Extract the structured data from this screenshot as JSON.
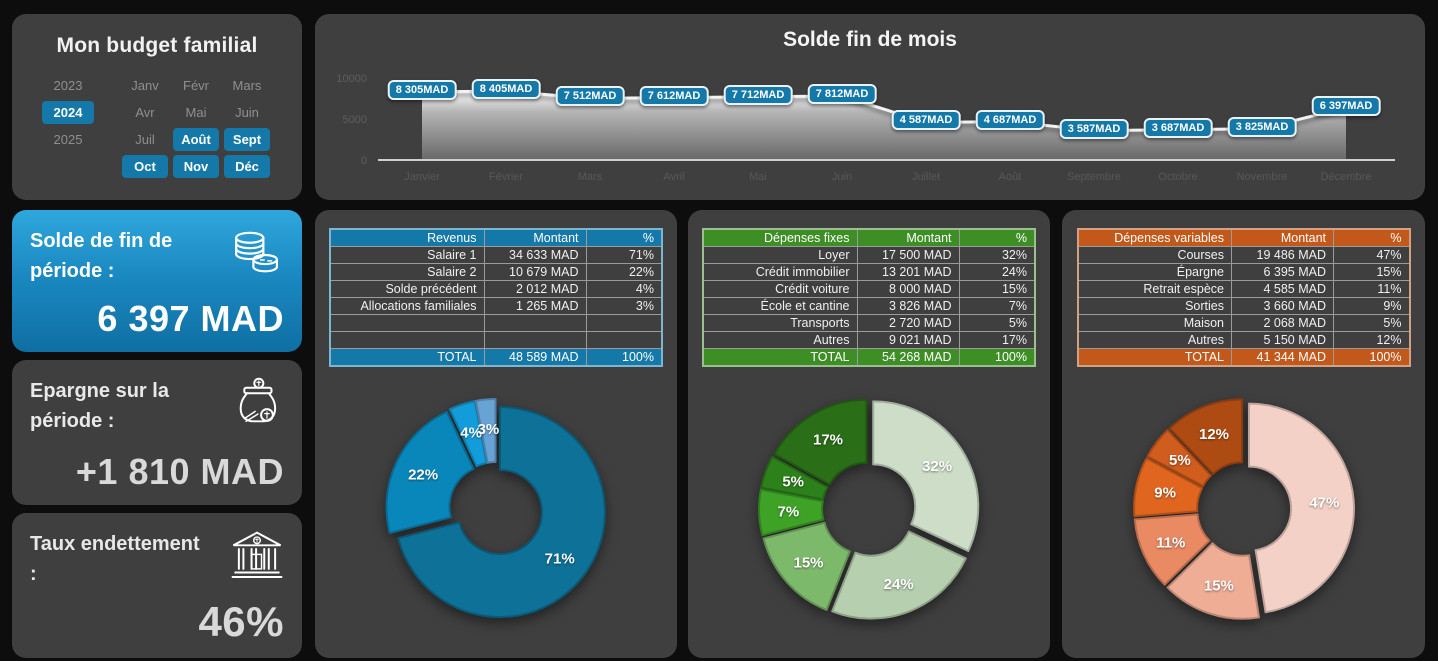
{
  "colors": {
    "background": "#0d0d0d",
    "panel": "#3f3f3f",
    "accent_blue": "#1478a9",
    "accent_green": "#3e8e26",
    "accent_orange": "#c2581a",
    "kpi_blue_gradient_top": "#2fa7dc",
    "kpi_blue_gradient_bottom": "#0f6fa3",
    "muted_text": "#8f8f8f",
    "axis_text": "#5c5c5c",
    "value_text": "#d9d9d9"
  },
  "sidebar": {
    "title": "Mon budget familial",
    "years": [
      {
        "label": "2023",
        "active": false
      },
      {
        "label": "2024",
        "active": true
      },
      {
        "label": "2025",
        "active": false
      }
    ],
    "months": [
      {
        "label": "Janv",
        "active": false
      },
      {
        "label": "Févr",
        "active": false
      },
      {
        "label": "Mars",
        "active": false
      },
      {
        "label": "Avr",
        "active": false
      },
      {
        "label": "Mai",
        "active": false
      },
      {
        "label": "Juin",
        "active": false
      },
      {
        "label": "Juil",
        "active": false
      },
      {
        "label": "Août",
        "active": true
      },
      {
        "label": "Sept",
        "active": true
      },
      {
        "label": "Oct",
        "active": true
      },
      {
        "label": "Nov",
        "active": true
      },
      {
        "label": "Déc",
        "active": true
      }
    ]
  },
  "kpi_cards": [
    {
      "title": "Solde de fin de période :",
      "value": "6 397 MAD",
      "icon": "coins-icon"
    },
    {
      "title": "Epargne sur la période :",
      "value": "+1 810 MAD",
      "icon": "savings-jar-icon"
    },
    {
      "title": "Taux endettement :",
      "value": "46%",
      "icon": "bank-icon"
    }
  ],
  "chart_data": [
    {
      "type": "area",
      "title": "Solde fin de mois",
      "x": [
        "Janvier",
        "Février",
        "Mars",
        "Avril",
        "Mai",
        "Juin",
        "Juillet",
        "Août",
        "Septembre",
        "Octobre",
        "Novembre",
        "Décembre"
      ],
      "values": [
        8305,
        8405,
        7512,
        7612,
        7712,
        7812,
        4587,
        4687,
        3587,
        3687,
        3825,
        6397
      ],
      "point_labels": [
        "8 305MAD",
        "8 405MAD",
        "7 512MAD",
        "7 612MAD",
        "7 712MAD",
        "7 812MAD",
        "4 587MAD",
        "4 687MAD",
        "3 587MAD",
        "3 687MAD",
        "3 825MAD",
        "6 397MAD"
      ],
      "ylim": [
        0,
        10000
      ],
      "yticks": [
        10000,
        5000,
        0
      ],
      "grid": false,
      "legend": false
    },
    {
      "type": "pie",
      "title": "Revenus",
      "categories": [
        "Salaire 1",
        "Salaire 2",
        "Solde précédent",
        "Allocations familiales"
      ],
      "values": [
        71,
        22,
        4,
        3
      ],
      "labels": [
        "71%",
        "22%",
        "4%",
        "3%"
      ],
      "slice_colors": [
        "#0e7197",
        "#0a87ba",
        "#129cd9",
        "#68a3d6"
      ]
    },
    {
      "type": "pie",
      "title": "Dépenses fixes",
      "categories": [
        "Loyer",
        "Crédit immobilier",
        "Crédit voiture",
        "École et cantine",
        "Transports",
        "Autres"
      ],
      "values": [
        32,
        24,
        15,
        7,
        5,
        17
      ],
      "labels": [
        "32%",
        "24%",
        "15%",
        "7%",
        "5%",
        "17%"
      ],
      "slice_colors": [
        "#cdddc8",
        "#b6cfae",
        "#7db96b",
        "#3da226",
        "#2d811b",
        "#2a6e17"
      ]
    },
    {
      "type": "pie",
      "title": "Dépenses variables",
      "categories": [
        "Courses",
        "Épargne",
        "Retrait espèce",
        "Sorties",
        "Maison",
        "Autres"
      ],
      "values": [
        47,
        15,
        11,
        9,
        5,
        12
      ],
      "labels": [
        "47%",
        "15%",
        "11%",
        "9%",
        "5%",
        "12%"
      ],
      "slice_colors": [
        "#f4d1c6",
        "#f0ad96",
        "#ea8a63",
        "#e0661f",
        "#d05c1d",
        "#ae4b13"
      ]
    }
  ],
  "tables": [
    {
      "name": "revenus",
      "accent": "#1478a9",
      "border": "#7db6cf",
      "columns": [
        "Revenus",
        "Montant",
        "%"
      ],
      "rows": [
        [
          "Salaire 1",
          "34 633 MAD",
          "71%"
        ],
        [
          "Salaire 2",
          "10 679 MAD",
          "22%"
        ],
        [
          "Solde précédent",
          "2 012 MAD",
          "4%"
        ],
        [
          "Allocations familiales",
          "1 265 MAD",
          "3%"
        ]
      ],
      "empty_rows": 2,
      "total": [
        "TOTAL",
        "48 589 MAD",
        "100%"
      ]
    },
    {
      "name": "depenses-fixes",
      "accent": "#3e8e26",
      "border": "#9cbf90",
      "columns": [
        "Dépenses fixes",
        "Montant",
        "%"
      ],
      "rows": [
        [
          "Loyer",
          "17 500 MAD",
          "32%"
        ],
        [
          "Crédit immobilier",
          "13 201 MAD",
          "24%"
        ],
        [
          "Crédit voiture",
          "8 000 MAD",
          "15%"
        ],
        [
          "École et cantine",
          "3 826 MAD",
          "7%"
        ],
        [
          "Transports",
          "2 720 MAD",
          "5%"
        ],
        [
          "Autres",
          "9 021 MAD",
          "17%"
        ]
      ],
      "empty_rows": 0,
      "total": [
        "TOTAL",
        "54 268 MAD",
        "100%"
      ]
    },
    {
      "name": "depenses-variables",
      "accent": "#c2581a",
      "border": "#d4a183",
      "columns": [
        "Dépenses variables",
        "Montant",
        "%"
      ],
      "rows": [
        [
          "Courses",
          "19 486 MAD",
          "47%"
        ],
        [
          "Épargne",
          "6 395 MAD",
          "15%"
        ],
        [
          "Retrait espèce",
          "4 585 MAD",
          "11%"
        ],
        [
          "Sorties",
          "3 660 MAD",
          "9%"
        ],
        [
          "Maison",
          "2 068 MAD",
          "5%"
        ],
        [
          "Autres",
          "5 150 MAD",
          "12%"
        ]
      ],
      "empty_rows": 0,
      "total": [
        "TOTAL",
        "41 344 MAD",
        "100%"
      ]
    }
  ]
}
